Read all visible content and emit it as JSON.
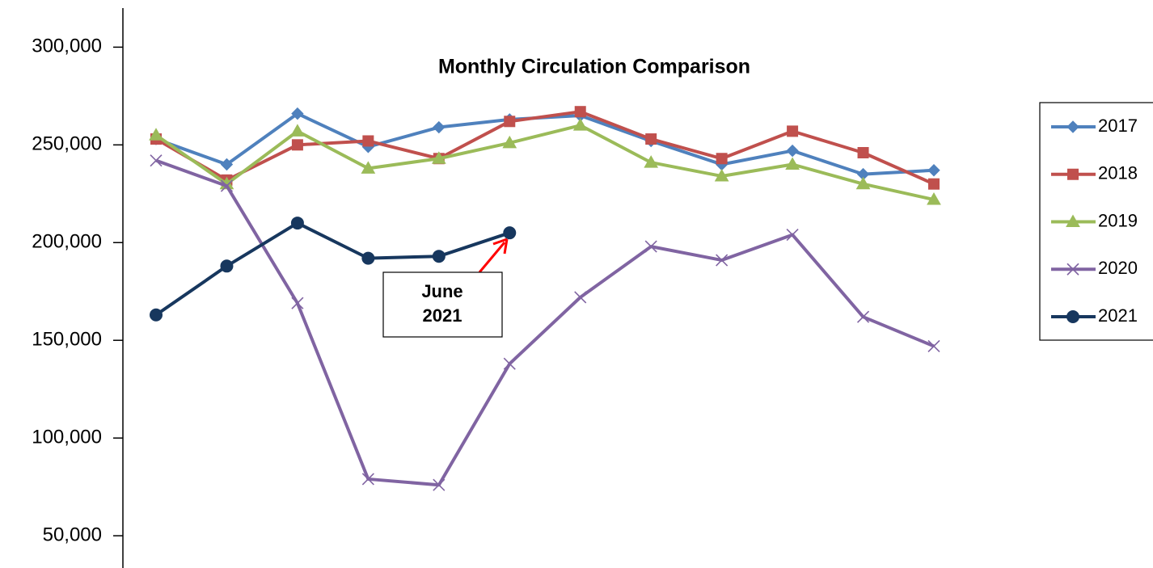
{
  "chart_data": {
    "type": "line",
    "title": "Monthly Circulation Comparison",
    "categories": [
      null,
      null,
      null,
      null,
      null,
      null,
      null,
      null,
      null,
      null,
      null,
      null
    ],
    "series": [
      {
        "name": "2017",
        "color": "#4f81bd",
        "marker": "diamond",
        "values": [
          253000,
          240000,
          266000,
          249000,
          259000,
          263000,
          265000,
          252000,
          240000,
          247000,
          235000,
          237000
        ]
      },
      {
        "name": "2018",
        "color": "#c0504d",
        "marker": "square",
        "values": [
          253000,
          232000,
          250000,
          252000,
          243000,
          262000,
          267000,
          253000,
          243000,
          257000,
          246000,
          230000
        ]
      },
      {
        "name": "2019",
        "color": "#9bbb59",
        "marker": "triangle",
        "values": [
          255000,
          230000,
          257000,
          238000,
          243000,
          251000,
          260000,
          241000,
          234000,
          240000,
          230000,
          222000
        ]
      },
      {
        "name": "2020",
        "color": "#8064a2",
        "marker": "x",
        "values": [
          242000,
          229000,
          169000,
          79000,
          76000,
          138000,
          172000,
          198000,
          191000,
          204000,
          162000,
          147000
        ]
      },
      {
        "name": "2021",
        "color": "#17375e",
        "marker": "circle",
        "values": [
          163000,
          188000,
          210000,
          192000,
          193000,
          205000,
          null,
          null,
          null,
          null,
          null,
          null
        ]
      }
    ],
    "ylim": [
      33500,
      320000
    ],
    "yticks": [
      {
        "value": 50000,
        "label": "50,000"
      },
      {
        "value": 100000,
        "label": "100,000"
      },
      {
        "value": 150000,
        "label": "150,000"
      },
      {
        "value": 200000,
        "label": "200,000"
      },
      {
        "value": 250000,
        "label": "250,000"
      },
      {
        "value": 300000,
        "label": "300,000"
      }
    ],
    "grid": false,
    "legend": "right",
    "annotation": {
      "lines": [
        "June",
        "2021"
      ],
      "color": "#ff0000"
    }
  }
}
